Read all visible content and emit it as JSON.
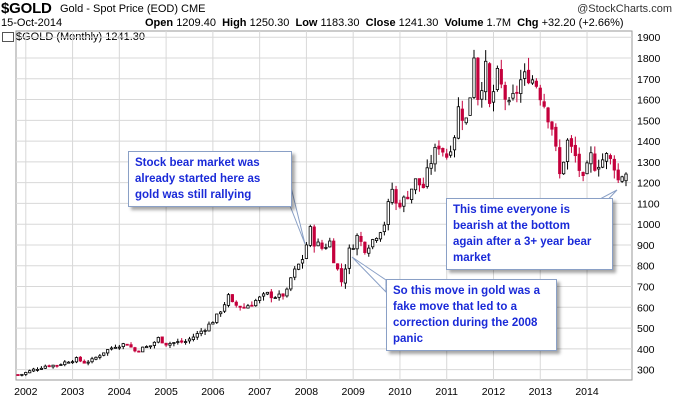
{
  "header": {
    "symbol": "$GOLD",
    "name": "Gold - Spot Price (EOD) CME",
    "date": "15-Oct-2014",
    "watermark": "@StockCharts.com",
    "open_label": "Open",
    "open": "1209.40",
    "high_label": "High",
    "high": "1250.30",
    "low_label": "Low",
    "low": "1183.30",
    "close_label": "Close",
    "close": "1241.30",
    "volume_label": "Volume",
    "volume": "1.7M",
    "chg_label": "Chg",
    "chg": "+32.20 (+2.66%)",
    "legend": "$GOLD (Monthly) 1241.30"
  },
  "colors": {
    "up": "#000000",
    "down": "#c4003c",
    "callout_text": "#1a2ad8",
    "grid": "#d8d8d8"
  },
  "annotations": [
    {
      "id": "a1",
      "text": "Stock bear market was\nalready started here as\ngold was still rallying"
    },
    {
      "id": "a2",
      "text": "So this move in gold was a\nfake move that led to a\ncorrection during the 2008\npanic"
    },
    {
      "id": "a3",
      "text": "This time everyone is\nbearish at the bottom\nagain after a 3+ year bear\nmarket"
    }
  ],
  "chart_data": {
    "type": "candlestick",
    "title": "$GOLD (Monthly) 1241.30",
    "interval": "monthly",
    "x_ticks": [
      "2002",
      "2003",
      "2004",
      "2005",
      "2006",
      "2007",
      "2008",
      "2009",
      "2010",
      "2011",
      "2012",
      "2013",
      "2014"
    ],
    "y_ticks": [
      300,
      400,
      500,
      600,
      700,
      800,
      900,
      1000,
      1100,
      1200,
      1300,
      1400,
      1500,
      1600,
      1700,
      1800,
      1900
    ],
    "ylim": [
      250,
      1930
    ],
    "xlim": [
      "2001-11",
      "2014-11"
    ],
    "close_path": [
      [
        "2001-11",
        276
      ],
      [
        "2001-12",
        278
      ],
      [
        "2002-03",
        300
      ],
      [
        "2002-06",
        318
      ],
      [
        "2002-09",
        322
      ],
      [
        "2002-12",
        342
      ],
      [
        "2003-02",
        350
      ],
      [
        "2003-04",
        335
      ],
      [
        "2003-06",
        345
      ],
      [
        "2003-09",
        385
      ],
      [
        "2003-12",
        415
      ],
      [
        "2004-03",
        425
      ],
      [
        "2004-05",
        390
      ],
      [
        "2004-09",
        415
      ],
      [
        "2004-11",
        450
      ],
      [
        "2005-01",
        425
      ],
      [
        "2005-03",
        430
      ],
      [
        "2005-06",
        435
      ],
      [
        "2005-09",
        470
      ],
      [
        "2005-12",
        515
      ],
      [
        "2006-02",
        555
      ],
      [
        "2006-05",
        650
      ],
      [
        "2006-06",
        615
      ],
      [
        "2006-09",
        600
      ],
      [
        "2006-12",
        632
      ],
      [
        "2007-03",
        662
      ],
      [
        "2007-06",
        650
      ],
      [
        "2007-08",
        672
      ],
      [
        "2007-09",
        740
      ],
      [
        "2007-12",
        835
      ],
      [
        "2008-02",
        970
      ],
      [
        "2008-03",
        915
      ],
      [
        "2008-05",
        885
      ],
      [
        "2008-07",
        915
      ],
      [
        "2008-08",
        835
      ],
      [
        "2008-10",
        725
      ],
      [
        "2008-12",
        870
      ],
      [
        "2009-02",
        940
      ],
      [
        "2009-04",
        885
      ],
      [
        "2009-06",
        925
      ],
      [
        "2009-09",
        1005
      ],
      [
        "2009-11",
        1170
      ],
      [
        "2009-12",
        1095
      ],
      [
        "2010-02",
        1115
      ],
      [
        "2010-05",
        1205
      ],
      [
        "2010-07",
        1180
      ],
      [
        "2010-09",
        1305
      ],
      [
        "2010-11",
        1385
      ],
      [
        "2011-01",
        1330
      ],
      [
        "2011-03",
        1435
      ],
      [
        "2011-04",
        1555
      ],
      [
        "2011-06",
        1500
      ],
      [
        "2011-07",
        1625
      ],
      [
        "2011-08",
        1825
      ],
      [
        "2011-09",
        1620
      ],
      [
        "2011-11",
        1745
      ],
      [
        "2011-12",
        1565
      ],
      [
        "2012-02",
        1710
      ],
      [
        "2012-05",
        1560
      ],
      [
        "2012-08",
        1690
      ],
      [
        "2012-10",
        1720
      ],
      [
        "2012-12",
        1675
      ],
      [
        "2013-02",
        1580
      ],
      [
        "2013-04",
        1470
      ],
      [
        "2013-06",
        1235
      ],
      [
        "2013-08",
        1395
      ],
      [
        "2013-10",
        1325
      ],
      [
        "2013-12",
        1205
      ],
      [
        "2014-02",
        1325
      ],
      [
        "2014-03",
        1285
      ],
      [
        "2014-06",
        1325
      ],
      [
        "2014-08",
        1285
      ],
      [
        "2014-09",
        1210
      ],
      [
        "2014-10",
        1241
      ]
    ],
    "last": {
      "open": 1209.4,
      "high": 1250.3,
      "low": 1183.3,
      "close": 1241.3
    }
  }
}
